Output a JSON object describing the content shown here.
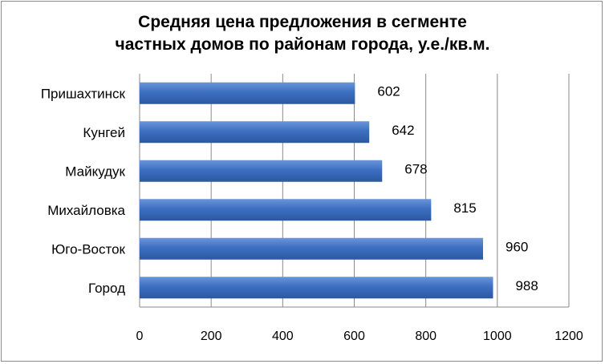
{
  "chart_data": {
    "type": "bar",
    "orientation": "horizontal",
    "title_line1": "Средняя цена предложения в сегменте",
    "title_line2": "частных домов по районам города, у.е./кв.м.",
    "categories": [
      "Пришахтинск",
      "Кунгей",
      "Майкудук",
      "Михайловка",
      "Юго-Восток",
      "Город"
    ],
    "values": [
      602,
      642,
      678,
      815,
      960,
      988
    ],
    "xlim": [
      0,
      1200
    ],
    "xticks": [
      "0",
      "200",
      "400",
      "600",
      "800",
      "1000",
      "1200"
    ],
    "grid": "vertical",
    "bar_color": "#3d6fc2",
    "xlabel": "",
    "ylabel": ""
  }
}
